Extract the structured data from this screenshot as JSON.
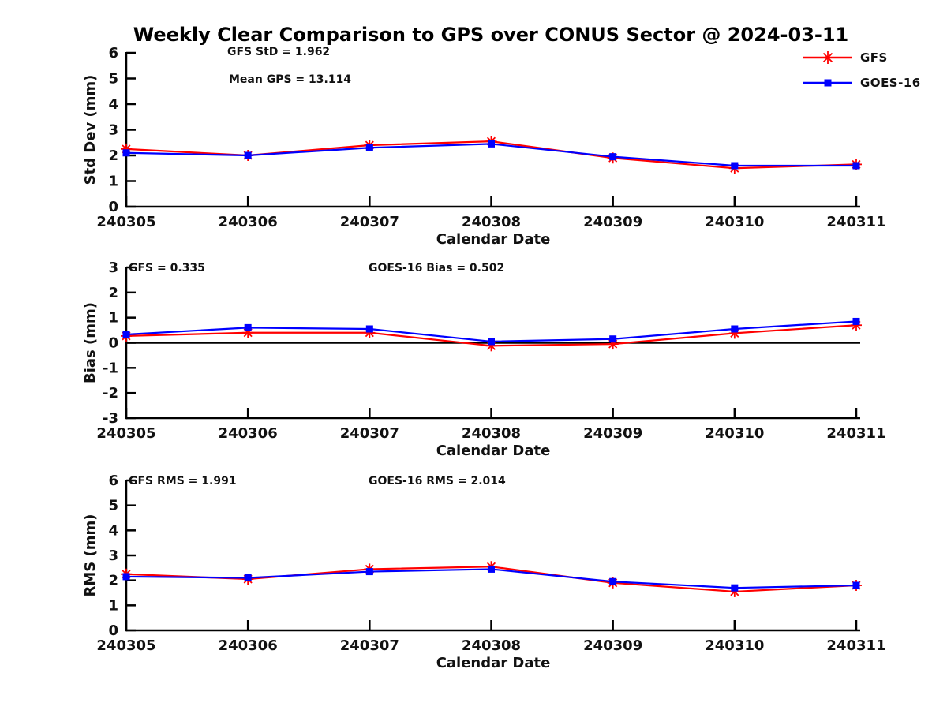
{
  "title": "Weekly Clear Comparison to GPS over CONUS Sector @ 2024-03-11",
  "legend": {
    "items": [
      {
        "label": "GFS",
        "color": "#ff0000",
        "marker": "asterisk"
      },
      {
        "label": "GOES-16",
        "color": "#0000ff",
        "marker": "square"
      }
    ]
  },
  "colors": {
    "gfs": "#ff0000",
    "goes16": "#0000ff",
    "axis": "#000000",
    "text": "#111111"
  },
  "chart_data": [
    {
      "type": "line",
      "ylabel": "Std Dev (mm)",
      "xlabel": "Calendar Date",
      "ylim": [
        0,
        6
      ],
      "yticks": [
        0,
        1,
        2,
        3,
        4,
        5,
        6
      ],
      "categories": [
        "240305",
        "240306",
        "240307",
        "240308",
        "240309",
        "240310",
        "240311"
      ],
      "annotations": [
        "GFS StD = 1.962",
        "Mean GPS = 13.114"
      ],
      "zero_line": false,
      "legend_position": "top-right-above-axes",
      "grid": false,
      "series": [
        {
          "name": "GFS",
          "color": "#ff0000",
          "marker": "asterisk",
          "values": [
            2.25,
            2.0,
            2.4,
            2.55,
            1.9,
            1.5,
            1.65
          ]
        },
        {
          "name": "GOES-16",
          "color": "#0000ff",
          "marker": "square",
          "values": [
            2.1,
            2.0,
            2.3,
            2.45,
            1.95,
            1.6,
            1.6
          ]
        }
      ]
    },
    {
      "type": "line",
      "ylabel": "Bias (mm)",
      "xlabel": "Calendar Date",
      "ylim": [
        -3,
        3
      ],
      "yticks": [
        3,
        2,
        1,
        0,
        -1,
        -2,
        -3
      ],
      "categories": [
        "240305",
        "240306",
        "240307",
        "240308",
        "240309",
        "240310",
        "240311"
      ],
      "annotations": [
        "GFS = 0.335",
        "GOES-16 Bias  = 0.502"
      ],
      "zero_line": true,
      "grid": false,
      "series": [
        {
          "name": "GFS",
          "color": "#ff0000",
          "marker": "asterisk",
          "values": [
            0.27,
            0.4,
            0.4,
            -0.12,
            -0.05,
            0.38,
            0.7
          ]
        },
        {
          "name": "GOES-16",
          "color": "#0000ff",
          "marker": "square",
          "values": [
            0.33,
            0.6,
            0.55,
            0.05,
            0.15,
            0.55,
            0.85
          ]
        }
      ]
    },
    {
      "type": "line",
      "ylabel": "RMS (mm)",
      "xlabel": "Calendar Date",
      "ylim": [
        0,
        6
      ],
      "yticks": [
        0,
        1,
        2,
        3,
        4,
        5,
        6
      ],
      "categories": [
        "240305",
        "240306",
        "240307",
        "240308",
        "240309",
        "240310",
        "240311"
      ],
      "annotations": [
        "GFS RMS = 1.991",
        "GOES-16 RMS = 2.014"
      ],
      "zero_line": false,
      "grid": false,
      "series": [
        {
          "name": "GFS",
          "color": "#ff0000",
          "marker": "asterisk",
          "values": [
            2.25,
            2.05,
            2.45,
            2.55,
            1.9,
            1.55,
            1.8
          ]
        },
        {
          "name": "GOES-16",
          "color": "#0000ff",
          "marker": "square",
          "values": [
            2.15,
            2.1,
            2.35,
            2.45,
            1.95,
            1.7,
            1.8
          ]
        }
      ]
    }
  ]
}
